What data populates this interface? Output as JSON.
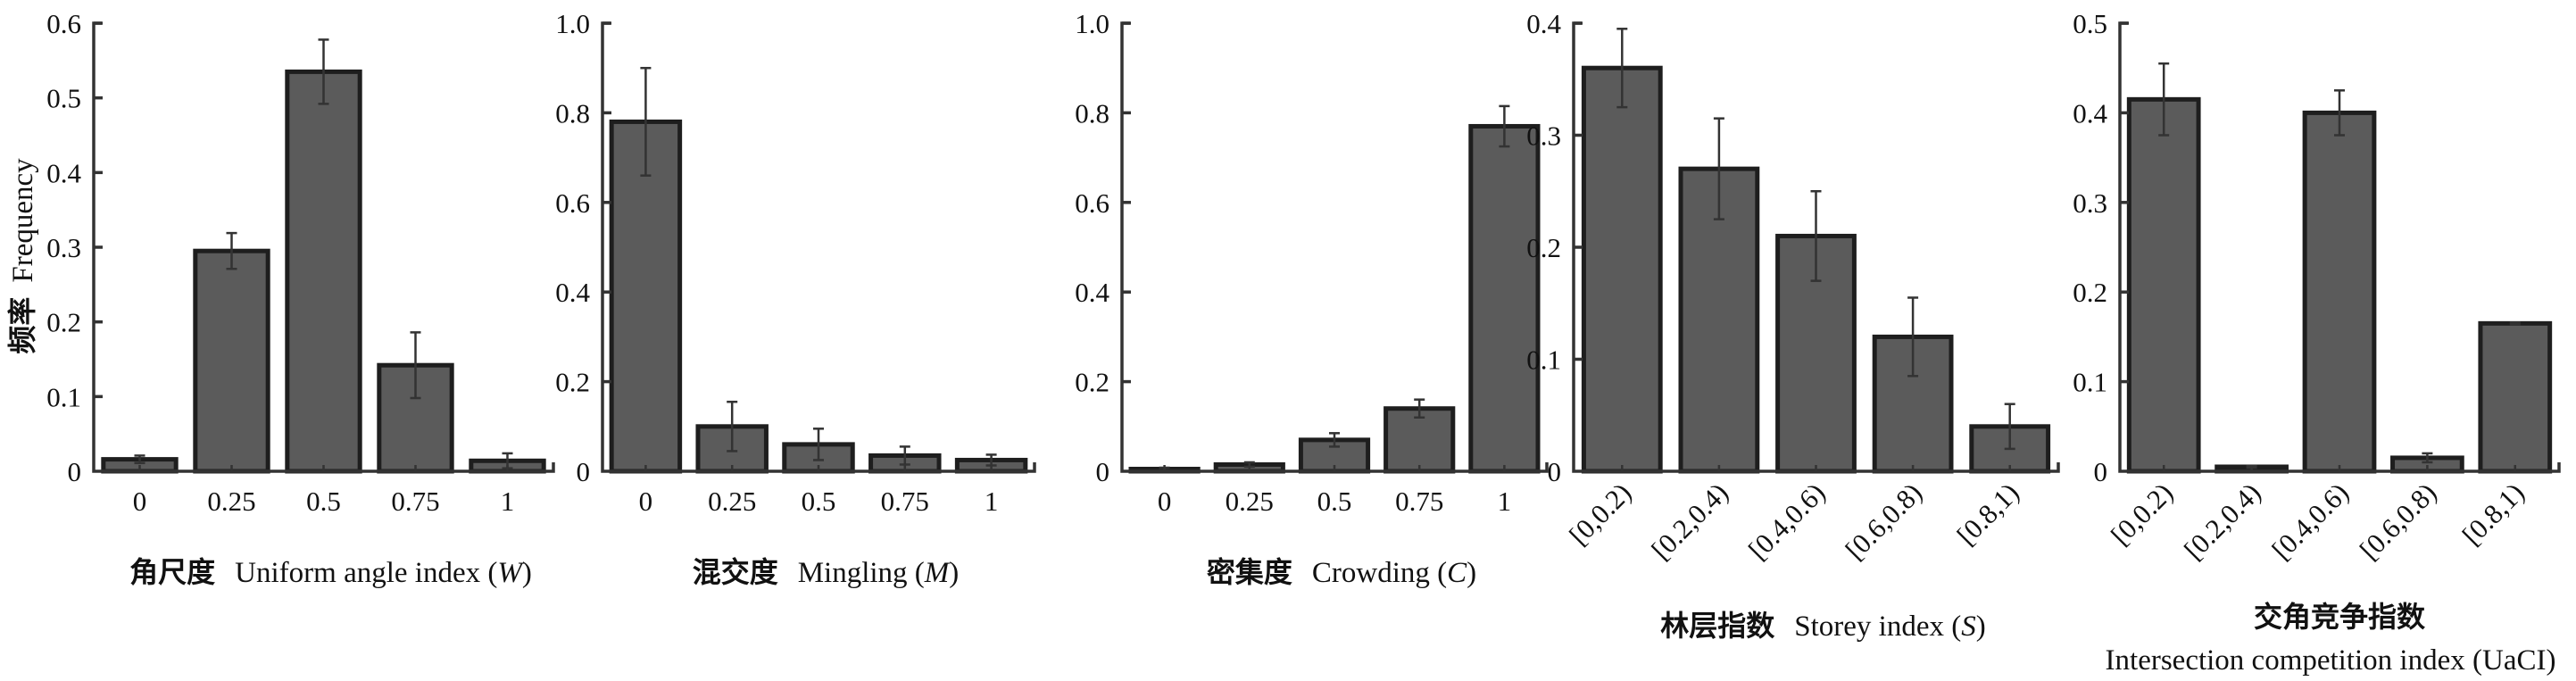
{
  "chart_data": [
    {
      "type": "bar",
      "ylabel_cn": "频率",
      "ylabel": "Frequency",
      "xlabel_cn": "角尺度",
      "xlabel": "Uniform angle index (",
      "xlabel_var": "W",
      "xlabel_end": ")",
      "categories": [
        "0",
        "0.25",
        "0.5",
        "0.75",
        "1"
      ],
      "values": [
        0.016,
        0.295,
        0.535,
        0.142,
        0.014
      ],
      "errors": [
        0.005,
        0.024,
        0.043,
        0.044,
        0.01
      ],
      "ylim": [
        0,
        0.6
      ],
      "yticks": [
        "0",
        "0.1",
        "0.2",
        "0.3",
        "0.4",
        "0.5",
        "0.6"
      ],
      "rotate_xticks": false
    },
    {
      "type": "bar",
      "xlabel_cn": "混交度",
      "xlabel": "Mingling (",
      "xlabel_var": "M",
      "xlabel_end": ")",
      "categories": [
        "0",
        "0.25",
        "0.5",
        "0.75",
        "1"
      ],
      "values": [
        0.78,
        0.1,
        0.06,
        0.035,
        0.025
      ],
      "errors": [
        0.12,
        0.055,
        0.035,
        0.02,
        0.012
      ],
      "ylim": [
        0,
        1.0
      ],
      "yticks": [
        "0",
        "0.2",
        "0.4",
        "0.6",
        "0.8",
        "1.0"
      ],
      "rotate_xticks": false
    },
    {
      "type": "bar",
      "xlabel_cn": "密集度",
      "xlabel": "Crowding (",
      "xlabel_var": "C",
      "xlabel_end": ")",
      "categories": [
        "0",
        "0.25",
        "0.5",
        "0.75",
        "1"
      ],
      "values": [
        0.005,
        0.015,
        0.07,
        0.14,
        0.77
      ],
      "errors": [
        0.003,
        0.005,
        0.015,
        0.02,
        0.045
      ],
      "ylim": [
        0,
        1.0
      ],
      "yticks": [
        "0",
        "0.2",
        "0.4",
        "0.6",
        "0.8",
        "1.0"
      ],
      "rotate_xticks": false
    },
    {
      "type": "bar",
      "xlabel_cn": "林层指数",
      "xlabel": "Storey index (",
      "xlabel_var": "S",
      "xlabel_end": ")",
      "categories": [
        "[0,0.2)",
        "[0.2,0.4)",
        "[0.4,0.6)",
        "[0.6,0.8)",
        "[0.8,1)"
      ],
      "values": [
        0.36,
        0.27,
        0.21,
        0.12,
        0.04
      ],
      "errors": [
        0.035,
        0.045,
        0.04,
        0.035,
        0.02
      ],
      "ylim": [
        0,
        0.4
      ],
      "yticks": [
        "0",
        "0.1",
        "0.2",
        "0.3",
        "0.4"
      ],
      "rotate_xticks": true
    },
    {
      "type": "bar",
      "xlabel_cn": "交角竞争指数",
      "xlabel2": "Intersection competition index (UaCI)",
      "categories": [
        "[0,0.2)",
        "[0.2,0.4)",
        "[0.4,0.6)",
        "[0.6,0.8)",
        "[0.8,1)"
      ],
      "values": [
        0.415,
        0.005,
        0.4,
        0.015,
        0.165
      ],
      "errors": [
        0.04,
        0.001,
        0.025,
        0.005,
        0.001
      ],
      "ylim": [
        0,
        0.5
      ],
      "yticks": [
        "0",
        "0.1",
        "0.2",
        "0.3",
        "0.4",
        "0.5"
      ],
      "rotate_xticks": true
    }
  ]
}
